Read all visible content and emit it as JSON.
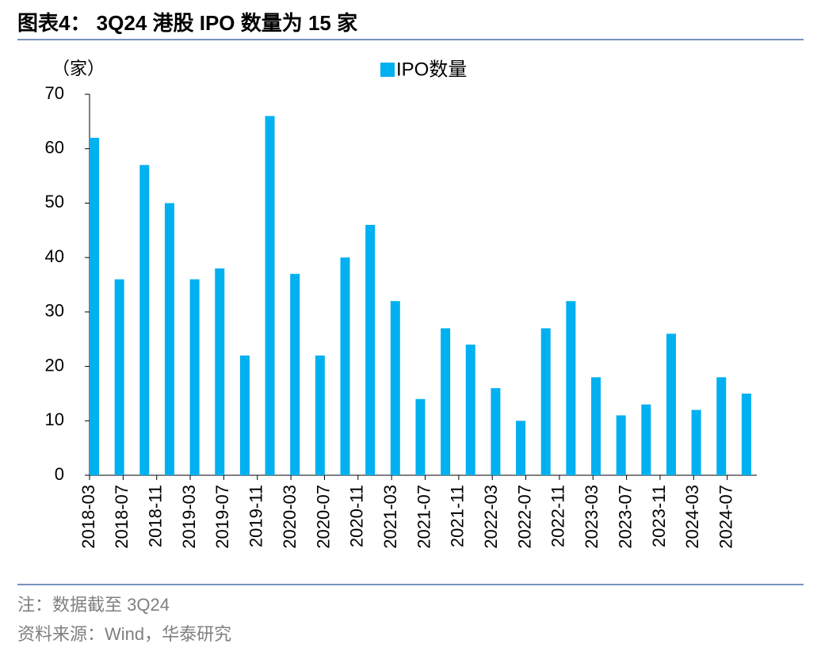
{
  "chart_data": {
    "type": "bar",
    "title": "图表4： 3Q24 港股 IPO 数量为 15 家",
    "y_unit": "（家）",
    "series": [
      {
        "name": "IPO数量",
        "color": "#00b0f0",
        "values": [
          62,
          36,
          57,
          50,
          36,
          38,
          22,
          66,
          37,
          22,
          40,
          46,
          32,
          14,
          27,
          24,
          16,
          10,
          27,
          32,
          18,
          11,
          13,
          26,
          12,
          18,
          15
        ]
      }
    ],
    "xticks": [
      "2018-03",
      "2018-07",
      "2018-11",
      "2019-03",
      "2019-07",
      "2019-11",
      "2020-03",
      "2020-07",
      "2020-11",
      "2021-03",
      "2021-07",
      "2021-11",
      "2022-03",
      "2022-07",
      "2022-11",
      "2023-03",
      "2023-07",
      "2023-11",
      "2024-03",
      "2024-07"
    ],
    "ylim": [
      0,
      70
    ],
    "yticks": [
      0,
      10,
      20,
      30,
      40,
      50,
      60,
      70
    ],
    "legend": "top",
    "notes": [
      "注：数据截至 3Q24",
      "资料来源：Wind，华泰研究"
    ]
  }
}
